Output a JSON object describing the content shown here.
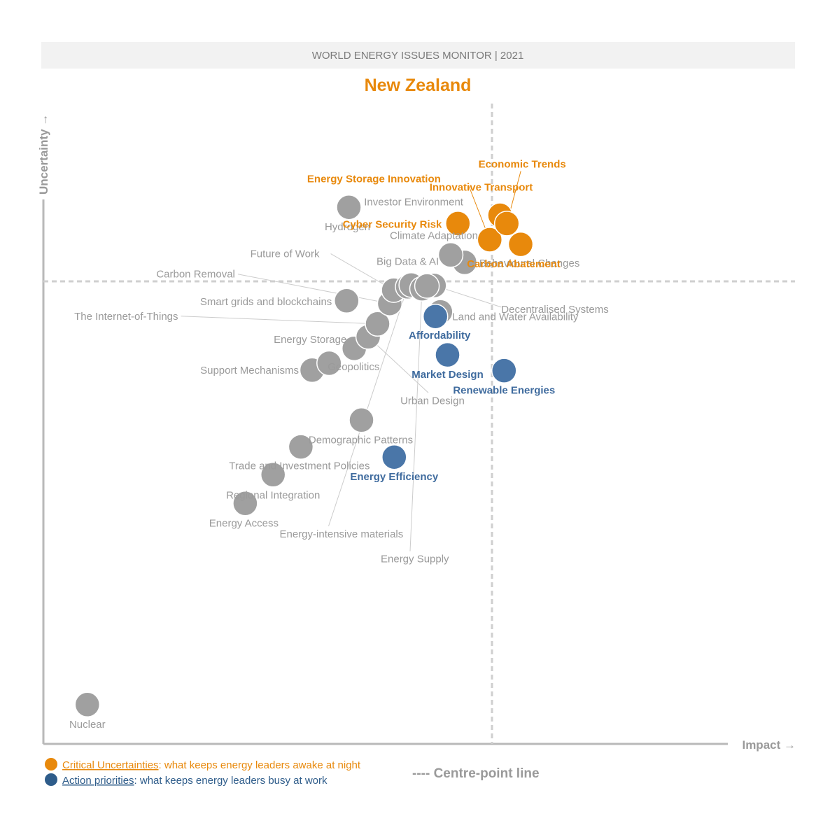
{
  "chart_data": {
    "type": "scatter",
    "header": "WORLD ENERGY ISSUES MONITOR | 2021",
    "title": "New Zealand",
    "xlabel": "Impact →",
    "ylabel": "Uncertainty →",
    "centre_line_label": "---- Centre-point line",
    "colors": {
      "critical": "#e8890c",
      "action": "#4a76a8",
      "other": "#a0a0a0",
      "axis": "#b9b9b9",
      "header_bg": "#f2f2f2"
    },
    "legend": [
      {
        "category": "critical",
        "name": "Critical Uncertainties",
        "desc": ": what keeps energy leaders awake at night"
      },
      {
        "category": "action",
        "name": "Action priorities",
        "desc": ": what keeps energy leaders busy at work"
      }
    ],
    "points": [
      {
        "label": "Nuclear",
        "x": 0.98,
        "y": 0.85,
        "category": "other"
      },
      {
        "label": "Energy Access",
        "x": 4.5,
        "y": 5.2,
        "category": "other"
      },
      {
        "label": "Regional Integration",
        "x": 5.12,
        "y": 5.82,
        "category": "other"
      },
      {
        "label": "Trade and Investment Policies",
        "x": 5.74,
        "y": 6.42,
        "category": "other"
      },
      {
        "label": "Demographic Patterns",
        "x": 7.09,
        "y": 7.0,
        "category": "other"
      },
      {
        "label": "Support Mechanisms",
        "x": 5.99,
        "y": 8.08,
        "category": "other"
      },
      {
        "label": "Energy Storage",
        "x": 6.37,
        "y": 8.23,
        "category": "other"
      },
      {
        "label": "Geopolitics",
        "x": 6.93,
        "y": 8.55,
        "category": "other"
      },
      {
        "label": "Urban Design",
        "x": 7.24,
        "y": 8.8,
        "category": "other"
      },
      {
        "label": "The Internet-of-Things",
        "x": 7.45,
        "y": 9.08,
        "category": "other"
      },
      {
        "label": "Smart grids and blockchains",
        "x": 6.76,
        "y": 9.58,
        "category": "other"
      },
      {
        "label": "Carbon Removal",
        "x": 7.72,
        "y": 9.52,
        "category": "other"
      },
      {
        "label": "Future of Work",
        "x": 7.81,
        "y": 9.81,
        "category": "other"
      },
      {
        "label": "Energy-intensive materials",
        "x": 8.12,
        "y": 9.88,
        "category": "other"
      },
      {
        "label": "Big Data & AI",
        "x": 8.2,
        "y": 9.92,
        "category": "other"
      },
      {
        "label": "Energy Supply",
        "x": 8.44,
        "y": 9.84,
        "category": "other"
      },
      {
        "label": "Decentralised Systems",
        "x": 8.71,
        "y": 9.91,
        "category": "other"
      },
      {
        "label": "Behavioural Changes",
        "x": 9.39,
        "y": 10.41,
        "category": "other"
      },
      {
        "label": "Climate Adaptation",
        "x": 9.08,
        "y": 10.57,
        "category": "other"
      },
      {
        "label": "Land and Water Availability",
        "x": 8.85,
        "y": 9.34,
        "category": "other"
      },
      {
        "label": "Hydrogen",
        "x": 6.81,
        "y": 11.6,
        "category": "other"
      },
      {
        "label": "Investor Environment",
        "x": 8.55,
        "y": 9.9,
        "category": "other"
      },
      {
        "label": "Affordability",
        "x": 8.74,
        "y": 9.24,
        "category": "action"
      },
      {
        "label": "Market Design",
        "x": 9.01,
        "y": 8.41,
        "category": "action"
      },
      {
        "label": "Renewable Energies",
        "x": 10.27,
        "y": 8.07,
        "category": "action"
      },
      {
        "label": "Energy Efficiency",
        "x": 7.82,
        "y": 6.2,
        "category": "action"
      },
      {
        "label": "Cyber Security Risk",
        "x": 9.24,
        "y": 11.25,
        "category": "critical"
      },
      {
        "label": "Energy Storage Innovation",
        "x": 9.95,
        "y": 10.9,
        "category": "critical"
      },
      {
        "label": "Innovative Transport",
        "x": 10.18,
        "y": 11.43,
        "category": "critical"
      },
      {
        "label": "Economic Trends",
        "x": 10.33,
        "y": 11.25,
        "category": "critical"
      },
      {
        "label": "Carbon Abatement",
        "x": 10.64,
        "y": 10.8,
        "category": "critical"
      }
    ]
  }
}
